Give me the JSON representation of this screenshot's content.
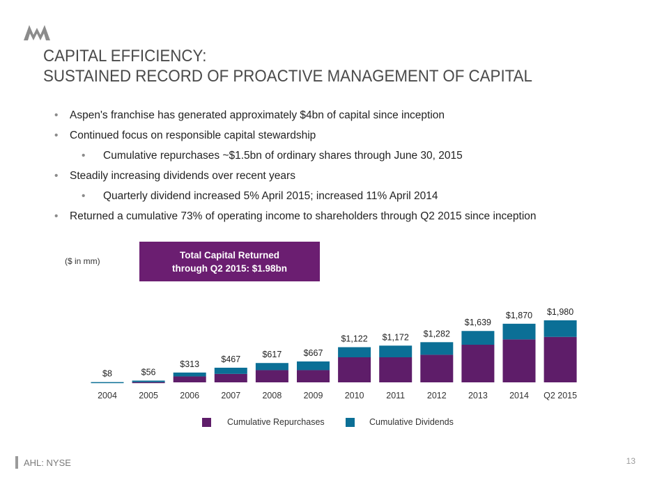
{
  "header": {
    "title_line1": "CAPITAL EFFICIENCY:",
    "title_line2": "SUSTAINED RECORD OF PROACTIVE MANAGEMENT OF CAPITAL"
  },
  "bullets": [
    {
      "text": "Aspen's franchise has generated approximately $4bn of capital since inception",
      "level": 1
    },
    {
      "text": "Continued focus on responsible capital stewardship",
      "level": 1
    },
    {
      "text": "Cumulative repurchases ~$1.5bn of ordinary shares through June 30, 2015",
      "level": 2
    },
    {
      "text": "Steadily increasing dividends over recent years",
      "level": 1
    },
    {
      "text": "Quarterly dividend increased 5% April 2015; increased 11% April 2014",
      "level": 2
    },
    {
      "text": "Returned a cumulative 73% of operating income to shareholders through Q2 2015 since inception",
      "level": 1
    }
  ],
  "bullet_symbol": "•",
  "unit_label": "($ in mm)",
  "callout": {
    "line1": "Total Capital Returned",
    "line2": "through Q2 2015: $1.98bn"
  },
  "colors": {
    "repurchases": "#5e1d69",
    "dividends": "#0b6f96",
    "callout_bg": "#6b1e71"
  },
  "chart_data": {
    "type": "bar",
    "stacked": true,
    "categories": [
      "2004",
      "2005",
      "2006",
      "2007",
      "2008",
      "2009",
      "2010",
      "2011",
      "2012",
      "2013",
      "2014",
      "Q2 2015"
    ],
    "series": [
      {
        "name": "Cumulative Repurchases",
        "values": [
          0,
          8,
          190,
          270,
          390,
          390,
          800,
          800,
          880,
          1200,
          1370,
          1450
        ]
      },
      {
        "name": "Cumulative Dividends",
        "values": [
          8,
          48,
          123,
          197,
          227,
          277,
          322,
          372,
          402,
          439,
          500,
          530
        ]
      }
    ],
    "totals": [
      8,
      56,
      313,
      467,
      617,
      667,
      1122,
      1172,
      1282,
      1639,
      1870,
      1980
    ],
    "total_labels": [
      "$8",
      "$56",
      "$313",
      "$467",
      "$617",
      "$667",
      "$1,122",
      "$1,172",
      "$1,282",
      "$1,639",
      "$1,870",
      "$1,980"
    ],
    "ylim": [
      0,
      2000
    ],
    "grid": false,
    "legend": "bottom-center"
  },
  "footer": {
    "ticker": "AHL: NYSE",
    "page_number": "13"
  }
}
